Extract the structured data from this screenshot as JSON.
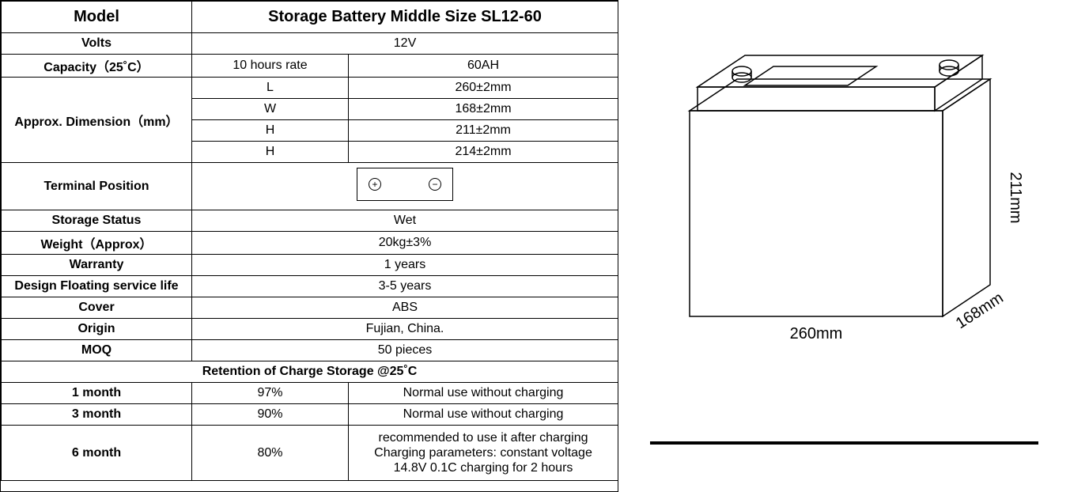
{
  "header": {
    "model_label": "Model",
    "model_value": "Storage Battery Middle Size SL12-60"
  },
  "volts": {
    "label": "Volts",
    "value": "12V"
  },
  "capacity": {
    "label": "Capacity（25˚C）",
    "rate_label": "10 hours rate",
    "value": "60AH"
  },
  "dimension": {
    "label": "Approx. Dimension（mm）",
    "rows": [
      {
        "sym": "L",
        "val": "260±2mm"
      },
      {
        "sym": "W",
        "val": "168±2mm"
      },
      {
        "sym": "H",
        "val": "211±2mm"
      },
      {
        "sym": "H",
        "val": "214±2mm"
      }
    ]
  },
  "terminal": {
    "label": "Terminal Position"
  },
  "storage_status": {
    "label": "Storage Status",
    "value": "Wet"
  },
  "weight": {
    "label": "Weight（Approx）",
    "value": "20kg±3%"
  },
  "warranty": {
    "label": "Warranty",
    "value": "1 years"
  },
  "design_life": {
    "label": "Design Floating service life",
    "value": "3-5 years"
  },
  "cover": {
    "label": "Cover",
    "value": "ABS"
  },
  "origin": {
    "label": "Origin",
    "value": "Fujian, China."
  },
  "moq": {
    "label": "MOQ",
    "value": "50 pieces"
  },
  "retention": {
    "header": "Retention of Charge Storage @25˚C",
    "rows": [
      {
        "period": "1 month",
        "pct": "97%",
        "note": "Normal use without charging"
      },
      {
        "period": "3 month",
        "pct": "90%",
        "note": "Normal use without charging"
      },
      {
        "period": "6 month",
        "pct": "80%",
        "note": "recommended to use it after charging\nCharging parameters: constant voltage\n14.8V 0.1C  charging for 2 hours"
      }
    ]
  },
  "diagram": {
    "length_label": "260mm",
    "width_label": "168mm",
    "height_label": "211mm",
    "stroke": "#000000",
    "stroke_width": 1.5,
    "bg": "#ffffff",
    "font_size": 20,
    "font_family": "Arial, Helvetica, sans-serif"
  },
  "colors": {
    "border": "#000000",
    "text": "#000000",
    "bg": "#ffffff"
  }
}
